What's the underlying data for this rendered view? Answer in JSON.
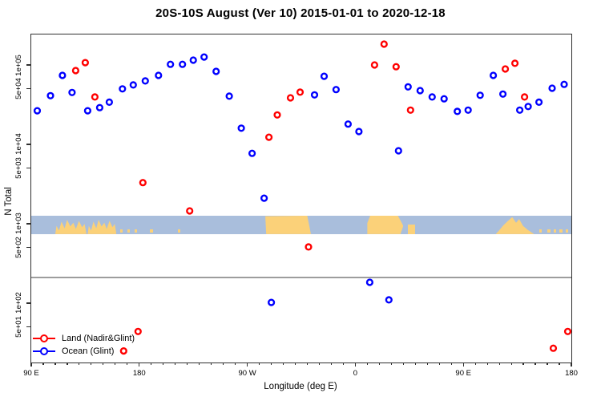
{
  "title": "20S-10S August (Ver 10)   2015-01-01 to 2020-12-18",
  "axes": {
    "y_label": "N Total",
    "x_label": "Longitude (deg E)",
    "y_scale": "log10",
    "y_log_top": 5.384,
    "y_log_bottom": 1.252,
    "y_ticks": [
      {
        "label": "1e+05",
        "log": 5.0
      },
      {
        "label": "5e+04",
        "log": 4.699
      },
      {
        "label": "1e+04",
        "log": 4.0
      },
      {
        "label": "5e+03",
        "log": 3.699
      },
      {
        "label": "1e+03",
        "log": 3.0
      },
      {
        "label": "5e+02",
        "log": 2.699
      },
      {
        "label": "1e+02",
        "log": 2.0
      },
      {
        "label": "5e+01",
        "log": 1.699
      }
    ],
    "x_range": [
      90,
      540
    ],
    "x_major_ticks": [
      {
        "label": "90 E",
        "lon": 90
      },
      {
        "label": "180",
        "lon": 180
      },
      {
        "label": "90 W",
        "lon": 270
      },
      {
        "label": "0",
        "lon": 360
      },
      {
        "label": "90 E",
        "lon": 450
      },
      {
        "label": "180",
        "lon": 540
      }
    ],
    "x_minor_step": 10
  },
  "legend": [
    {
      "label": "Land (Nadir&Glint)",
      "color": "#ff0000"
    },
    {
      "label": "Ocean (Glint)",
      "color": "#0000ff"
    }
  ],
  "colors": {
    "land_series": "#ff0000",
    "ocean_series": "#0000ff",
    "map_ocean": "#a9bedc",
    "map_land": "#fbd179",
    "ref_line": "#9d9d9d",
    "axis": "#2f2f2f"
  },
  "ref_line": {
    "log_value": 2.323
  },
  "map_band": {
    "top_log": 3.101,
    "bottom_log": 2.869,
    "land_patches": [
      {
        "kind": "jagged",
        "lon0": 110,
        "lon1": 136
      },
      {
        "kind": "jagged",
        "lon0": 137,
        "lon1": 161
      },
      {
        "kind": "dot",
        "lon": 165
      },
      {
        "kind": "dot",
        "lon": 171
      },
      {
        "kind": "dot",
        "lon": 177
      },
      {
        "kind": "dot",
        "lon": 190
      },
      {
        "kind": "dot",
        "lon": 213
      },
      {
        "kind": "solid",
        "lon0": 285,
        "lon1": 323
      },
      {
        "kind": "solid2",
        "lon0": 370,
        "lon1": 400
      },
      {
        "kind": "half",
        "lon0": 404,
        "lon1": 410
      },
      {
        "kind": "jagged2",
        "lon0": 477,
        "lon1": 509
      },
      {
        "kind": "dot",
        "lon": 514
      },
      {
        "kind": "dot",
        "lon": 521
      },
      {
        "kind": "dot",
        "lon": 526
      },
      {
        "kind": "dot",
        "lon": 531
      },
      {
        "kind": "dot",
        "lon": 536
      }
    ]
  },
  "chart_data": {
    "type": "scatter",
    "title": "20S-10S August (Ver 10)   2015-01-01 to 2020-12-18",
    "xlabel": "Longitude (deg E)",
    "ylabel": "N Total",
    "x_note": "longitude in degrees east, unwrapped from 90E to 540 (=180)",
    "xlim": [
      90,
      540
    ],
    "ylim_log10": [
      1.252,
      5.384
    ],
    "grid": false,
    "legend_position": "bottom-left",
    "series": [
      {
        "name": "Land (Nadir&Glint)",
        "color": "#ff0000",
        "points": [
          [
            127,
            85000
          ],
          [
            135,
            107000
          ],
          [
            143,
            39500
          ],
          [
            288,
            12300
          ],
          [
            295,
            23500
          ],
          [
            306,
            38500
          ],
          [
            314,
            45500
          ],
          [
            376,
            100000
          ],
          [
            384,
            183000
          ],
          [
            394,
            95000
          ],
          [
            406,
            27000
          ],
          [
            485,
            89000
          ],
          [
            493,
            105000
          ],
          [
            501,
            39500
          ],
          [
            183,
            3300
          ],
          [
            222,
            1450
          ],
          [
            321,
            510
          ],
          [
            179,
            44
          ],
          [
            167,
            25
          ],
          [
            537,
            44
          ],
          [
            525,
            27
          ]
        ]
      },
      {
        "name": "Ocean (Glint)",
        "color": "#0000ff",
        "points": [
          [
            95,
            26500
          ],
          [
            106,
            41000
          ],
          [
            116,
            74000
          ],
          [
            124,
            45000
          ],
          [
            137,
            26500
          ],
          [
            147,
            29000
          ],
          [
            155,
            34000
          ],
          [
            166,
            50000
          ],
          [
            175,
            56000
          ],
          [
            185,
            63000
          ],
          [
            196,
            74000
          ],
          [
            206,
            102000
          ],
          [
            216,
            102000
          ],
          [
            225,
            115000
          ],
          [
            234,
            126000
          ],
          [
            244,
            83000
          ],
          [
            255,
            40500
          ],
          [
            265,
            16000
          ],
          [
            274,
            7700
          ],
          [
            326,
            42000
          ],
          [
            334,
            72000
          ],
          [
            344,
            49000
          ],
          [
            354,
            18000
          ],
          [
            363,
            14500
          ],
          [
            396,
            8300
          ],
          [
            404,
            53000
          ],
          [
            414,
            47500
          ],
          [
            424,
            39500
          ],
          [
            434,
            37500
          ],
          [
            445,
            26000
          ],
          [
            454,
            27000
          ],
          [
            464,
            41500
          ],
          [
            475,
            74000
          ],
          [
            483,
            43000
          ],
          [
            497,
            27000
          ],
          [
            504,
            30000
          ],
          [
            513,
            34000
          ],
          [
            524,
            51000
          ],
          [
            534,
            57000
          ],
          [
            284,
            2100
          ],
          [
            290,
            102
          ],
          [
            372,
            183
          ],
          [
            388,
            110
          ]
        ]
      }
    ]
  }
}
